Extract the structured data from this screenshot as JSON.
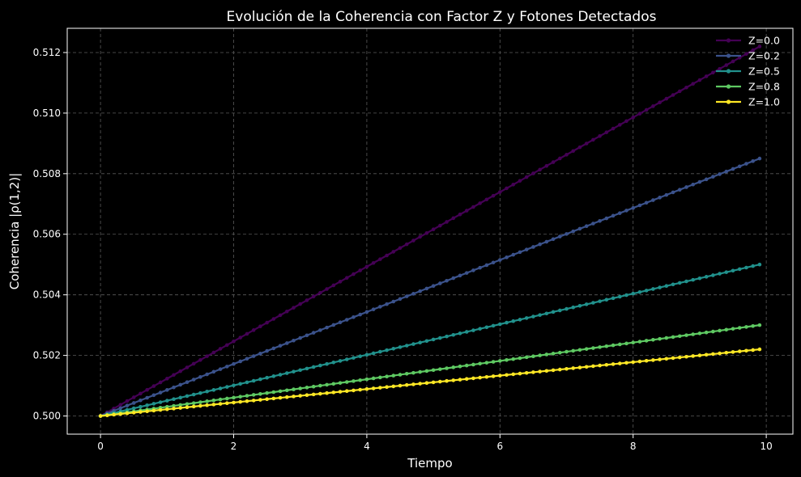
{
  "chart_data": {
    "type": "line",
    "title": "Evolución de la Coherencia con Factor Z y Fotones Detectados",
    "xlabel": "Tiempo",
    "ylabel": "Coherencia |ρ(1,2)|",
    "xlim": [
      -0.5,
      10.4
    ],
    "ylim": [
      0.4994,
      0.5128
    ],
    "xticks": [
      0,
      2,
      4,
      6,
      8,
      10
    ],
    "xtick_labels": [
      "0",
      "2",
      "4",
      "6",
      "8",
      "10"
    ],
    "yticks": [
      0.5,
      0.502,
      0.504,
      0.506,
      0.508,
      0.51,
      0.512
    ],
    "ytick_labels": [
      "0.500",
      "0.502",
      "0.504",
      "0.506",
      "0.508",
      "0.510",
      "0.512"
    ],
    "grid": true,
    "legend_position": "top-right",
    "x_start": 0,
    "x_end": 9.9,
    "x_step": 0.1,
    "series": [
      {
        "name": "Z=0.0",
        "color": "#440154",
        "start": 0.5,
        "end": 0.5122
      },
      {
        "name": "Z=0.2",
        "color": "#3b528b",
        "start": 0.5,
        "end": 0.5085
      },
      {
        "name": "Z=0.5",
        "color": "#21918c",
        "start": 0.5,
        "end": 0.505
      },
      {
        "name": "Z=0.8",
        "color": "#5ec962",
        "start": 0.5,
        "end": 0.503
      },
      {
        "name": "Z=1.0",
        "color": "#fde725",
        "start": 0.5,
        "end": 0.5022
      }
    ]
  }
}
